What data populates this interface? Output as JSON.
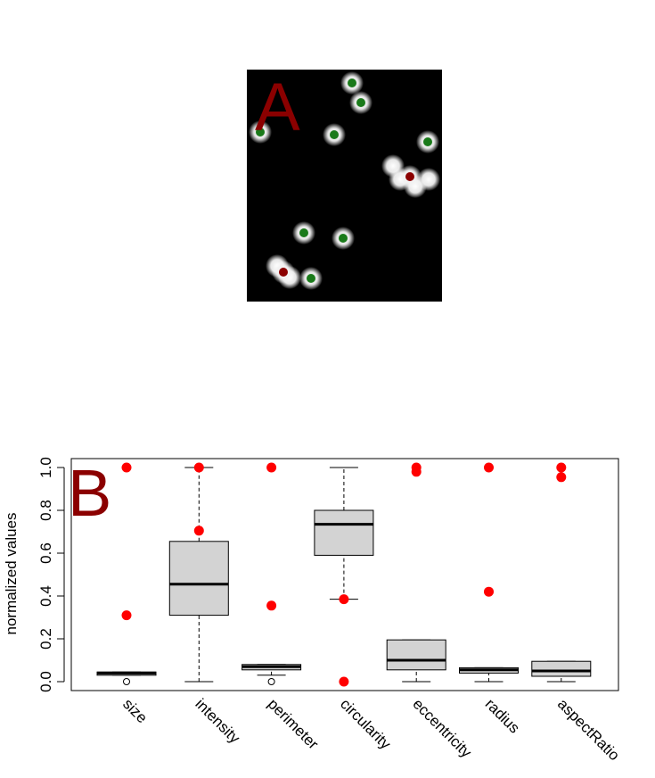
{
  "panel_a": {
    "label": "A",
    "cells": [
      {
        "x": 395,
        "y": 93,
        "r": 10,
        "status": "accepted"
      },
      {
        "x": 405,
        "y": 115,
        "r": 10,
        "status": "accepted"
      },
      {
        "x": 292,
        "y": 148,
        "r": 10,
        "status": "accepted"
      },
      {
        "x": 375,
        "y": 151,
        "r": 10,
        "status": "accepted"
      },
      {
        "x": 480,
        "y": 159,
        "r": 10,
        "status": "accepted"
      },
      {
        "x": 441,
        "y": 186,
        "r": 10,
        "status": "none"
      },
      {
        "x": 449,
        "y": 201,
        "r": 10,
        "status": "none"
      },
      {
        "x": 466,
        "y": 209,
        "r": 10,
        "status": "none"
      },
      {
        "x": 481,
        "y": 201,
        "r": 10,
        "status": "none"
      },
      {
        "x": 460,
        "y": 198,
        "r": 10,
        "status": "rejected"
      },
      {
        "x": 341,
        "y": 261,
        "r": 10,
        "status": "accepted"
      },
      {
        "x": 385,
        "y": 267,
        "r": 10,
        "status": "accepted"
      },
      {
        "x": 311,
        "y": 298,
        "r": 10,
        "status": "none"
      },
      {
        "x": 325,
        "y": 311,
        "r": 10,
        "status": "none"
      },
      {
        "x": 318,
        "y": 305,
        "r": 10,
        "status": "rejected"
      },
      {
        "x": 349,
        "y": 312,
        "r": 10,
        "status": "accepted"
      }
    ],
    "colors": {
      "accepted": "#1a7a1a",
      "rejected": "#8b0000",
      "background": "#000000"
    }
  },
  "chart_data": {
    "type": "boxplot",
    "panel_label": "B",
    "ylabel": "normalized values",
    "ylim": [
      0,
      1
    ],
    "yticks": [
      "0.0",
      "0.2",
      "0.4",
      "0.6",
      "0.8",
      "1.0"
    ],
    "categories": [
      "size",
      "intensity",
      "perimeter",
      "circularity",
      "eccentricity",
      "radius",
      "aspectRatio"
    ],
    "boxes": [
      {
        "min": 0.03,
        "q1": 0.03,
        "median": 0.04,
        "q3": 0.045,
        "max": 0.045,
        "outliers": [
          0.0
        ]
      },
      {
        "min": 0.0,
        "q1": 0.31,
        "median": 0.455,
        "q3": 0.655,
        "max": 1.0,
        "outliers": []
      },
      {
        "min": 0.03,
        "q1": 0.055,
        "median": 0.07,
        "q3": 0.08,
        "max": 0.08,
        "outliers": [
          0.0
        ]
      },
      {
        "min": 0.385,
        "q1": 0.59,
        "median": 0.735,
        "q3": 0.8,
        "max": 1.0,
        "outliers": []
      },
      {
        "min": 0.0,
        "q1": 0.055,
        "median": 0.1,
        "q3": 0.195,
        "max": 0.195,
        "outliers": []
      },
      {
        "min": 0.0,
        "q1": 0.04,
        "median": 0.055,
        "q3": 0.065,
        "max": 0.065,
        "outliers": []
      },
      {
        "min": 0.0,
        "q1": 0.025,
        "median": 0.05,
        "q3": 0.095,
        "max": 0.095,
        "outliers": []
      }
    ],
    "highlighted_points": [
      {
        "category": "size",
        "values": [
          1.0,
          0.31
        ]
      },
      {
        "category": "intensity",
        "values": [
          1.0,
          0.705
        ]
      },
      {
        "category": "perimeter",
        "values": [
          1.0,
          0.355
        ]
      },
      {
        "category": "circularity",
        "values": [
          0.385,
          0.0
        ]
      },
      {
        "category": "eccentricity",
        "values": [
          1.0,
          0.98
        ]
      },
      {
        "category": "radius",
        "values": [
          1.0,
          0.42
        ]
      },
      {
        "category": "aspectRatio",
        "values": [
          1.0,
          0.955
        ]
      }
    ],
    "colors": {
      "box_fill": "#d3d3d3",
      "highlight": "#ff0000",
      "panel_label": "#8b0000"
    }
  }
}
